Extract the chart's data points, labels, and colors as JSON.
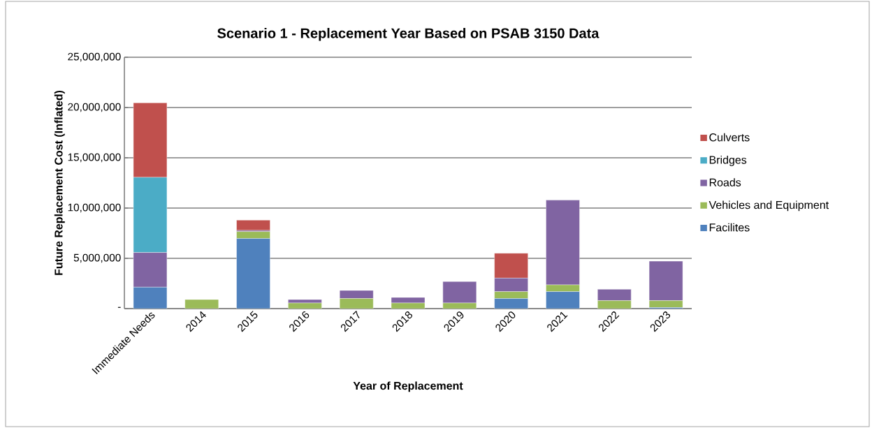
{
  "chart_data": {
    "type": "bar",
    "stacked": true,
    "title": "Scenario 1 - Replacement Year Based on PSAB 3150 Data",
    "xlabel": "Year of Replacement",
    "ylabel": "Future Replacement Cost  (Inflated)",
    "categories": [
      "Immediate Needs",
      "2014",
      "2015",
      "2016",
      "2017",
      "2018",
      "2019",
      "2020",
      "2021",
      "2022",
      "2023"
    ],
    "series": [
      {
        "name": "Facilites",
        "color": "#4f81bd",
        "values": [
          2130000,
          0,
          6970000,
          0,
          0,
          0,
          0,
          1000000,
          1690000,
          0,
          100000
        ]
      },
      {
        "name": "Vehicles and Equipment",
        "color": "#9bbb59",
        "values": [
          0,
          900000,
          690000,
          560000,
          1000000,
          560000,
          560000,
          690000,
          670000,
          790000,
          690000
        ]
      },
      {
        "name": "Roads",
        "color": "#8064a2",
        "values": [
          3450000,
          0,
          120000,
          340000,
          810000,
          550000,
          2130000,
          1340000,
          8430000,
          1130000,
          3930000
        ]
      },
      {
        "name": "Bridges",
        "color": "#4bacc6",
        "values": [
          7480000,
          0,
          0,
          0,
          0,
          0,
          0,
          0,
          0,
          0,
          0
        ]
      },
      {
        "name": "Culverts",
        "color": "#c0504d",
        "values": [
          7400000,
          0,
          1020000,
          0,
          0,
          0,
          0,
          2480000,
          0,
          0,
          0
        ]
      }
    ],
    "ylim": [
      0,
      25000000
    ],
    "yticks": [
      {
        "value": 0,
        "label": "-"
      },
      {
        "value": 5000000,
        "label": "5,000,000"
      },
      {
        "value": 10000000,
        "label": "10,000,000"
      },
      {
        "value": 15000000,
        "label": "15,000,000"
      },
      {
        "value": 20000000,
        "label": "20,000,000"
      },
      {
        "value": 25000000,
        "label": "25,000,000"
      }
    ],
    "grid": "y",
    "legend": "right"
  }
}
